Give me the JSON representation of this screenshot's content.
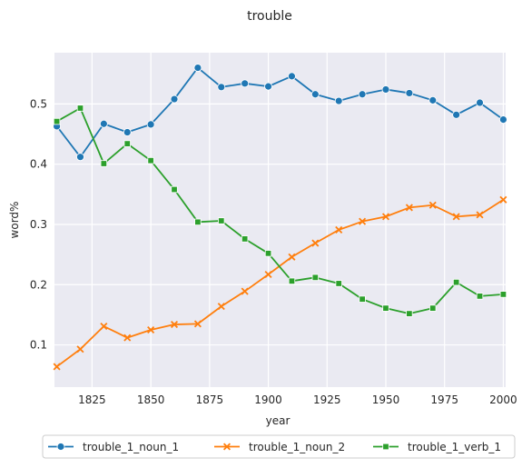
{
  "chart_data": {
    "type": "line",
    "title": "trouble",
    "xlabel": "year",
    "ylabel": "word%",
    "xlim": [
      1809,
      2001
    ],
    "ylim": [
      0.03,
      0.585
    ],
    "xticks": [
      1825,
      1850,
      1875,
      1900,
      1925,
      1950,
      1975,
      2000
    ],
    "yticks": [
      0.1,
      0.2,
      0.3,
      0.4,
      0.5
    ],
    "x": [
      1810,
      1820,
      1830,
      1840,
      1850,
      1860,
      1870,
      1880,
      1890,
      1900,
      1910,
      1920,
      1930,
      1940,
      1950,
      1960,
      1970,
      1980,
      1990,
      2000
    ],
    "grid": true,
    "legend_placement": "bottom",
    "series": [
      {
        "name": "trouble_1_noun_1",
        "color": "#1f77b4",
        "marker": "circle",
        "values": [
          0.463,
          0.412,
          0.467,
          0.453,
          0.466,
          0.508,
          0.56,
          0.528,
          0.534,
          0.529,
          0.546,
          0.516,
          0.505,
          0.516,
          0.524,
          0.518,
          0.506,
          0.482,
          0.502,
          0.474
        ]
      },
      {
        "name": "trouble_1_noun_2",
        "color": "#ff7f0e",
        "marker": "x",
        "values": [
          0.064,
          0.093,
          0.131,
          0.112,
          0.125,
          0.134,
          0.135,
          0.164,
          0.189,
          0.217,
          0.246,
          0.269,
          0.291,
          0.305,
          0.313,
          0.328,
          0.332,
          0.313,
          0.316,
          0.341
        ]
      },
      {
        "name": "trouble_1_verb_1",
        "color": "#2ca02c",
        "marker": "square",
        "values": [
          0.471,
          0.493,
          0.401,
          0.434,
          0.406,
          0.358,
          0.304,
          0.306,
          0.276,
          0.252,
          0.206,
          0.212,
          0.202,
          0.176,
          0.161,
          0.152,
          0.161,
          0.204,
          0.181,
          0.184
        ]
      }
    ]
  }
}
